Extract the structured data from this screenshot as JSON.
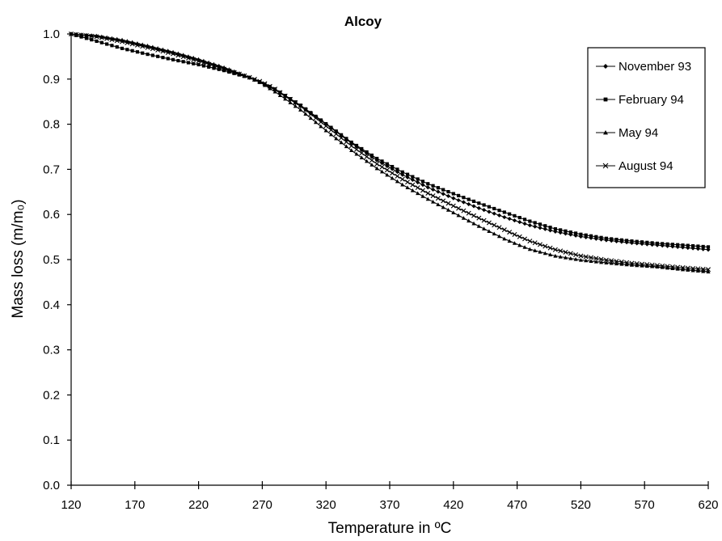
{
  "chart_data": {
    "type": "line",
    "title": "Alcoy",
    "xlabel": "Temperature in ºC",
    "ylabel": "Mass loss (m/m₀)",
    "xlim": [
      120,
      620
    ],
    "ylim": [
      0,
      1.0
    ],
    "xticks": [
      120,
      170,
      220,
      270,
      320,
      370,
      420,
      470,
      520,
      570,
      620
    ],
    "yticks": [
      0.0,
      0.1,
      0.2,
      0.3,
      0.4,
      0.5,
      0.6,
      0.7,
      0.8,
      0.9,
      1.0
    ],
    "ytick_labels": [
      "0.0",
      "0.1",
      "0.2",
      "0.3",
      "0.4",
      "0.5",
      "0.6",
      "0.7",
      "0.8",
      "0.9",
      "1.0"
    ],
    "grid": false,
    "legend_position": "top-right",
    "series": [
      {
        "name": "November 93",
        "marker": "diamond",
        "x": [
          120,
          140,
          160,
          180,
          200,
          220,
          240,
          260,
          270,
          280,
          300,
          320,
          340,
          360,
          380,
          400,
          420,
          440,
          460,
          470,
          480,
          500,
          520,
          540,
          560,
          580,
          600,
          620
        ],
        "y": [
          1.0,
          0.995,
          0.985,
          0.972,
          0.958,
          0.942,
          0.924,
          0.903,
          0.891,
          0.876,
          0.84,
          0.8,
          0.758,
          0.72,
          0.688,
          0.66,
          0.636,
          0.614,
          0.594,
          0.585,
          0.576,
          0.562,
          0.551,
          0.543,
          0.537,
          0.532,
          0.527,
          0.522
        ]
      },
      {
        "name": "February 94",
        "marker": "square",
        "x": [
          120,
          140,
          160,
          180,
          200,
          220,
          240,
          260,
          270,
          280,
          300,
          320,
          340,
          360,
          380,
          400,
          420,
          440,
          460,
          470,
          480,
          500,
          520,
          540,
          560,
          580,
          600,
          620
        ],
        "y": [
          1.0,
          0.984,
          0.968,
          0.955,
          0.943,
          0.932,
          0.919,
          0.903,
          0.892,
          0.878,
          0.842,
          0.801,
          0.76,
          0.724,
          0.694,
          0.668,
          0.646,
          0.625,
          0.605,
          0.595,
          0.585,
          0.568,
          0.556,
          0.547,
          0.541,
          0.536,
          0.532,
          0.528
        ]
      },
      {
        "name": "May 94",
        "marker": "triangle",
        "x": [
          120,
          140,
          160,
          180,
          200,
          220,
          240,
          260,
          270,
          280,
          300,
          320,
          340,
          360,
          380,
          400,
          420,
          440,
          460,
          470,
          480,
          500,
          520,
          540,
          560,
          580,
          600,
          620
        ],
        "y": [
          1.0,
          0.996,
          0.987,
          0.974,
          0.96,
          0.944,
          0.926,
          0.904,
          0.89,
          0.872,
          0.832,
          0.786,
          0.742,
          0.702,
          0.666,
          0.634,
          0.604,
          0.574,
          0.546,
          0.534,
          0.523,
          0.508,
          0.499,
          0.493,
          0.488,
          0.484,
          0.478,
          0.473
        ]
      },
      {
        "name": "August 94",
        "marker": "x",
        "x": [
          120,
          140,
          160,
          180,
          200,
          220,
          240,
          260,
          270,
          280,
          300,
          320,
          340,
          360,
          380,
          400,
          420,
          440,
          460,
          470,
          480,
          500,
          520,
          540,
          560,
          580,
          600,
          620
        ],
        "y": [
          1.0,
          0.994,
          0.983,
          0.97,
          0.956,
          0.94,
          0.922,
          0.904,
          0.893,
          0.878,
          0.84,
          0.796,
          0.752,
          0.712,
          0.678,
          0.647,
          0.619,
          0.592,
          0.566,
          0.553,
          0.541,
          0.522,
          0.508,
          0.499,
          0.492,
          0.487,
          0.482,
          0.478
        ]
      }
    ]
  }
}
